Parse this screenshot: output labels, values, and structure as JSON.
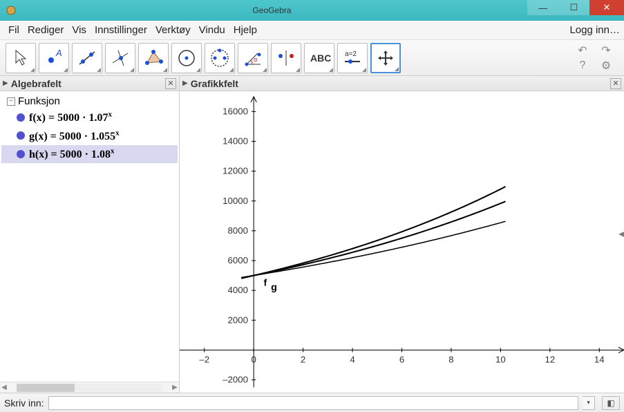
{
  "window": {
    "title": "GeoGebra",
    "login_label": "Logg inn…"
  },
  "menu": {
    "items": [
      "Fil",
      "Rediger",
      "Vis",
      "Innstillinger",
      "Verktøy",
      "Vindu",
      "Hjelp"
    ]
  },
  "toolbar": {
    "tools": [
      {
        "name": "move-tool",
        "icon": "cursor"
      },
      {
        "name": "point-tool",
        "icon": "pointA"
      },
      {
        "name": "line-tool",
        "icon": "line"
      },
      {
        "name": "perpendicular-tool",
        "icon": "perp"
      },
      {
        "name": "polygon-tool",
        "icon": "polygon"
      },
      {
        "name": "circle-tool",
        "icon": "circle"
      },
      {
        "name": "ellipse-tool",
        "icon": "ellipse"
      },
      {
        "name": "angle-tool",
        "icon": "angle"
      },
      {
        "name": "reflect-tool",
        "icon": "reflect"
      },
      {
        "name": "text-tool",
        "icon": "text",
        "label": "ABC"
      },
      {
        "name": "slider-tool",
        "icon": "slider",
        "label": "a=2"
      },
      {
        "name": "move-view-tool",
        "icon": "pan",
        "active": true
      }
    ],
    "undo_icon": "↶",
    "redo_icon": "↷",
    "help_icon": "?",
    "settings_icon": "⚙"
  },
  "panels": {
    "algebra": {
      "title": "Algebrafelt",
      "category": "Funksjon",
      "functions": [
        {
          "name": "f",
          "expr_html": "<b>f(x)  =  5000 · 1.07<sup>x</sup></b>",
          "color": "#5050d0"
        },
        {
          "name": "g",
          "expr_html": "<b>g(x)  =  5000 · 1.055<sup>x</sup></b>",
          "color": "#5050d0"
        },
        {
          "name": "h",
          "expr_html": "<b>h(x)  =  5000 · 1.08<sup>x</sup></b>",
          "color": "#5050d0",
          "selected": true
        }
      ]
    },
    "graphics": {
      "title": "Grafikkfelt",
      "x_axis": {
        "min": -3,
        "max": 15,
        "ticks": [
          -2,
          0,
          2,
          4,
          6,
          8,
          10,
          12,
          14
        ]
      },
      "y_axis": {
        "min": -2500,
        "max": 17000,
        "ticks": [
          -2000,
          0,
          2000,
          4000,
          6000,
          8000,
          10000,
          12000,
          14000,
          16000
        ]
      },
      "curves": [
        {
          "name": "g",
          "base": 5000,
          "rate": 1.055,
          "color": "#000000",
          "width": 1.5
        },
        {
          "name": "f",
          "base": 5000,
          "rate": 1.07,
          "color": "#000000",
          "width": 2
        },
        {
          "name": "h",
          "base": 5000,
          "rate": 1.08,
          "color": "#000000",
          "width": 2
        }
      ],
      "curve_xrange": [
        -0.5,
        10.2
      ],
      "origin_labels": [
        "f",
        "g"
      ],
      "axis_color": "#000000",
      "tick_fontsize": 13,
      "background": "#ffffff"
    }
  },
  "inputbar": {
    "label": "Skriv inn:",
    "value": "",
    "placeholder": ""
  }
}
